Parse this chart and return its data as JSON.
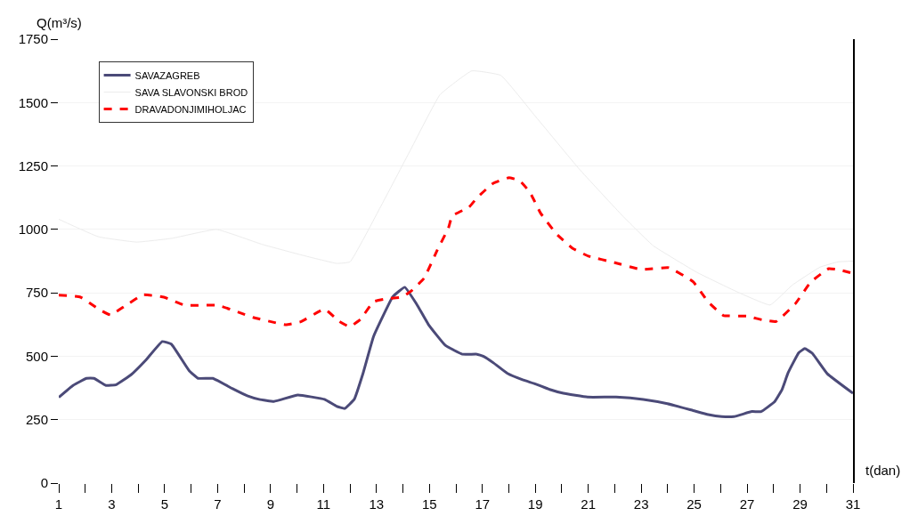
{
  "chart_data": {
    "type": "line",
    "xlabel": "t(dan)",
    "ylabel": "Q(m³/s)",
    "xlim": [
      1,
      31
    ],
    "xticks": [
      1,
      {
        "value": 2,
        "label": null
      },
      3,
      {
        "value": 4,
        "label": null
      },
      5,
      {
        "value": 6,
        "label": null
      },
      7,
      {
        "value": 8,
        "label": null
      },
      9,
      {
        "value": 10,
        "label": null
      },
      11,
      {
        "value": 12,
        "label": null
      },
      13,
      {
        "value": 14,
        "label": null
      },
      15,
      {
        "value": 16,
        "label": null
      },
      17,
      {
        "value": 18,
        "label": null
      },
      19,
      {
        "value": 20,
        "label": null
      },
      21,
      {
        "value": 22,
        "label": null
      },
      23,
      {
        "value": 24,
        "label": null
      },
      25,
      {
        "value": 26,
        "label": null
      },
      27,
      {
        "value": 28,
        "label": null
      },
      29,
      {
        "value": 30,
        "label": null
      },
      31
    ],
    "ylim": [
      0,
      1750
    ],
    "yticks": [
      0,
      250,
      500,
      750,
      1000,
      1250,
      1500,
      1750
    ],
    "grid": "y",
    "legend": "top left",
    "marker": "none",
    "series": [
      {
        "name": "SAVAZAGREB",
        "color": "#4b4a78",
        "line_style": "solid",
        "x": [
          1,
          1.54,
          2.05,
          2.33,
          2.78,
          3.17,
          3.73,
          4.29,
          4.91,
          5.25,
          5.92,
          6.26,
          6.82,
          7.55,
          8.12,
          8.57,
          9.13,
          10.03,
          11.04,
          11.49,
          11.8,
          12.16,
          12.5,
          12.89,
          13.62,
          14.07,
          14.52,
          14.97,
          15.6,
          16.24,
          16.8,
          17.03,
          17.43,
          17.95,
          18.52,
          19.03,
          19.54,
          20.06,
          20.97,
          22.05,
          23.08,
          23.99,
          24.96,
          25.53,
          26.04,
          26.5,
          27.18,
          27.53,
          28.04,
          28.32,
          28.55,
          28.95,
          29.18,
          29.46,
          30.03,
          31
        ],
        "values": [
          338,
          385,
          413,
          413,
          385,
          388,
          427,
          485,
          558,
          548,
          444,
          413,
          413,
          373,
          344,
          330,
          322,
          347,
          330,
          303,
          294,
          330,
          435,
          578,
          735,
          772,
          705,
          624,
          543,
          508,
          508,
          500,
          473,
          432,
          407,
          390,
          369,
          354,
          339,
          339,
          330,
          313,
          286,
          270,
          262,
          262,
          282,
          282,
          321,
          369,
          435,
          514,
          530,
          512,
          431,
          354
        ]
      },
      {
        "name": "SAVA SLAVONSKI BROD",
        "color": "#ececec",
        "line_style": "solid",
        "x": [
          1,
          2.5,
          3.94,
          5.28,
          6.96,
          8.65,
          10.1,
          11.5,
          12,
          13.15,
          14.27,
          15.4,
          16.6,
          17.7,
          18.97,
          20.65,
          22.3,
          23.45,
          25.1,
          26.6,
          27.87,
          28.7,
          29.75,
          30.43,
          31
        ],
        "values": [
          1040,
          971,
          950,
          965,
          1000,
          942,
          901,
          866,
          872,
          1088,
          1310,
          1531,
          1625,
          1607,
          1450,
          1239,
          1053,
          936,
          831,
          755,
          702,
          780,
          851,
          872,
          875
        ]
      },
      {
        "name": "DRAVADONJIMIHOLJAC",
        "color": "#ff0000",
        "line_style": "dashed",
        "x": [
          1,
          1.82,
          2.5,
          2.95,
          3.5,
          4.18,
          4.97,
          5.76,
          7,
          7.78,
          8.34,
          9.02,
          9.58,
          10.14,
          11.04,
          11.6,
          11.99,
          12.39,
          12.89,
          13.4,
          13.96,
          14.3,
          14.8,
          15.3,
          15.72,
          15.86,
          16.5,
          16.8,
          17.4,
          18,
          18.4,
          18.8,
          19.2,
          19.8,
          20.4,
          21,
          22,
          23,
          24.05,
          24.96,
          25.53,
          26.1,
          27,
          27.58,
          28.1,
          28.83,
          29.4,
          30.08,
          30.43,
          31
        ],
        "values": [
          741,
          733,
          686,
          663,
          698,
          742,
          733,
          701,
          701,
          674,
          653,
          636,
          624,
          636,
          686,
          637,
          616,
          645,
          715,
          727,
          733,
          756,
          808,
          919,
          1006,
          1053,
          1088,
          1125,
          1181,
          1204,
          1193,
          1146,
          1064,
          982,
          926,
          895,
          869,
          842,
          849,
          794,
          714,
          661,
          658,
          643,
          637,
          708,
          792,
          845,
          842,
          827
        ]
      }
    ]
  }
}
